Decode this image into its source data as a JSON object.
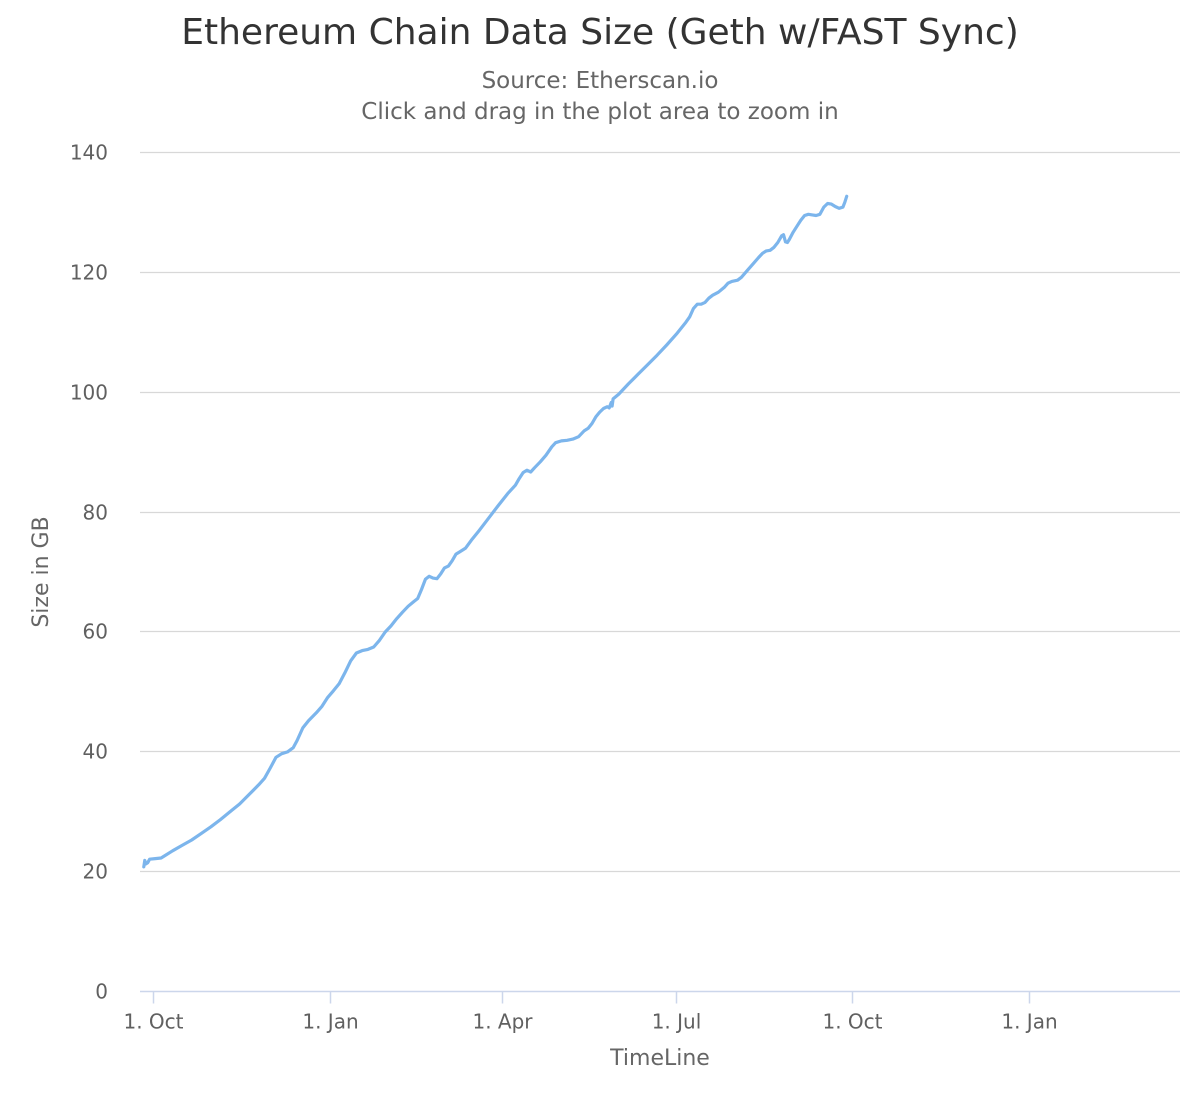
{
  "chart_data": {
    "type": "line",
    "title": "Ethereum Chain Data Size (Geth w/FAST Sync)",
    "subtitle": [
      "Source: Etherscan.io",
      "Click and drag in the plot area to zoom in"
    ],
    "xlabel": "TimeLine",
    "ylabel": "Size in GB",
    "ylim": [
      0,
      140
    ],
    "yticks": [
      0,
      20,
      40,
      60,
      80,
      100,
      120,
      140
    ],
    "xlim_days": [
      -7,
      536
    ],
    "xticks": [
      {
        "label": "1. Oct",
        "day": 0
      },
      {
        "label": "1. Jan",
        "day": 92
      },
      {
        "label": "1. Apr",
        "day": 182
      },
      {
        "label": "1. Jul",
        "day": 273
      },
      {
        "label": "1. Oct",
        "day": 365
      },
      {
        "label": "1. Jan",
        "day": 457
      }
    ],
    "series": [
      {
        "name": "Size in GB",
        "color": "#7cb5ec",
        "points": [
          [
            -5,
            20.7
          ],
          [
            -4.5,
            21.8
          ],
          [
            -4,
            21.2
          ],
          [
            -3,
            21.4
          ],
          [
            -2,
            22.0
          ],
          [
            1,
            22.1
          ],
          [
            4,
            22.2
          ],
          [
            6,
            22.6
          ],
          [
            10,
            23.4
          ],
          [
            15,
            24.3
          ],
          [
            20,
            25.2
          ],
          [
            25,
            26.3
          ],
          [
            30,
            27.4
          ],
          [
            35,
            28.6
          ],
          [
            40,
            29.9
          ],
          [
            45,
            31.2
          ],
          [
            50,
            32.8
          ],
          [
            55,
            34.4
          ],
          [
            58,
            35.5
          ],
          [
            61,
            37.2
          ],
          [
            64,
            39.0
          ],
          [
            67,
            39.6
          ],
          [
            70,
            39.9
          ],
          [
            73,
            40.6
          ],
          [
            75,
            41.8
          ],
          [
            78,
            43.9
          ],
          [
            81,
            45.1
          ],
          [
            85,
            46.4
          ],
          [
            88,
            47.5
          ],
          [
            91,
            49.0
          ],
          [
            94,
            50.1
          ],
          [
            97,
            51.3
          ],
          [
            100,
            53.1
          ],
          [
            103,
            55.1
          ],
          [
            106,
            56.4
          ],
          [
            109,
            56.8
          ],
          [
            112,
            57.0
          ],
          [
            115,
            57.4
          ],
          [
            118,
            58.5
          ],
          [
            121,
            59.9
          ],
          [
            124,
            60.9
          ],
          [
            127,
            62.1
          ],
          [
            130,
            63.2
          ],
          [
            133,
            64.2
          ],
          [
            136,
            65.0
          ],
          [
            138,
            65.5
          ],
          [
            140,
            67.0
          ],
          [
            142,
            68.7
          ],
          [
            144,
            69.2
          ],
          [
            146,
            68.9
          ],
          [
            148,
            68.8
          ],
          [
            150,
            69.6
          ],
          [
            152,
            70.6
          ],
          [
            154,
            70.9
          ],
          [
            156,
            71.8
          ],
          [
            158,
            72.9
          ],
          [
            160,
            73.3
          ],
          [
            163,
            73.9
          ],
          [
            166,
            75.2
          ],
          [
            170,
            76.8
          ],
          [
            175,
            78.9
          ],
          [
            180,
            81.0
          ],
          [
            185,
            83.0
          ],
          [
            189,
            84.4
          ],
          [
            191,
            85.5
          ],
          [
            193,
            86.5
          ],
          [
            195,
            86.9
          ],
          [
            197,
            86.6
          ],
          [
            199,
            87.3
          ],
          [
            202,
            88.3
          ],
          [
            205,
            89.4
          ],
          [
            208,
            90.8
          ],
          [
            210,
            91.5
          ],
          [
            213,
            91.8
          ],
          [
            216,
            91.9
          ],
          [
            219,
            92.1
          ],
          [
            222,
            92.5
          ],
          [
            225,
            93.5
          ],
          [
            227,
            93.9
          ],
          [
            229,
            94.7
          ],
          [
            231,
            95.8
          ],
          [
            233,
            96.6
          ],
          [
            235,
            97.2
          ],
          [
            237,
            97.5
          ],
          [
            238,
            97.3
          ],
          [
            239,
            98.2
          ],
          [
            239.5,
            97.6
          ],
          [
            240,
            98.8
          ],
          [
            243,
            99.6
          ],
          [
            248,
            101.3
          ],
          [
            253,
            102.9
          ],
          [
            258,
            104.5
          ],
          [
            263,
            106.1
          ],
          [
            268,
            107.8
          ],
          [
            273,
            109.6
          ],
          [
            278,
            111.6
          ],
          [
            280,
            112.5
          ],
          [
            282,
            113.9
          ],
          [
            284,
            114.6
          ],
          [
            286,
            114.6
          ],
          [
            288,
            114.9
          ],
          [
            290,
            115.6
          ],
          [
            292,
            116.1
          ],
          [
            295,
            116.6
          ],
          [
            298,
            117.4
          ],
          [
            300,
            118.1
          ],
          [
            302,
            118.4
          ],
          [
            305,
            118.6
          ],
          [
            307,
            119.1
          ],
          [
            310,
            120.2
          ],
          [
            313,
            121.3
          ],
          [
            316,
            122.4
          ],
          [
            318,
            123.1
          ],
          [
            320,
            123.5
          ],
          [
            322,
            123.6
          ],
          [
            324,
            124.1
          ],
          [
            326,
            124.9
          ],
          [
            328,
            126.0
          ],
          [
            329,
            126.2
          ],
          [
            330,
            125.0
          ],
          [
            331,
            124.9
          ],
          [
            332,
            125.4
          ],
          [
            334,
            126.6
          ],
          [
            336,
            127.6
          ],
          [
            338,
            128.6
          ],
          [
            340,
            129.4
          ],
          [
            342,
            129.6
          ],
          [
            344,
            129.5
          ],
          [
            346,
            129.4
          ],
          [
            348,
            129.6
          ],
          [
            350,
            130.8
          ],
          [
            352,
            131.4
          ],
          [
            354,
            131.3
          ],
          [
            356,
            130.9
          ],
          [
            358,
            130.6
          ],
          [
            360,
            130.8
          ],
          [
            361,
            131.6
          ],
          [
            362,
            132.6
          ]
        ]
      }
    ]
  }
}
